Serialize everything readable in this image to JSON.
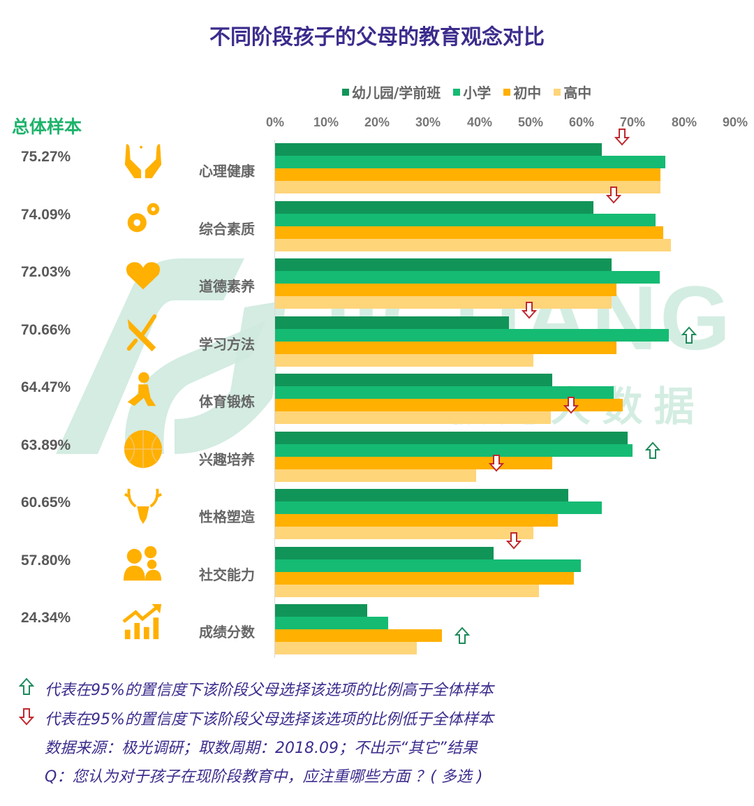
{
  "title": "不同阶段孩子的父母的教育观念对比",
  "legend": [
    {
      "label": "幼儿园/学前班",
      "color": "#119458"
    },
    {
      "label": "小学",
      "color": "#15bb73"
    },
    {
      "label": "初中",
      "color": "#ffb000"
    },
    {
      "label": "高中",
      "color": "#ffd57a"
    }
  ],
  "overall_title": "总体样本",
  "watermark": {
    "en": "JIGUANG",
    "cn": "极 光 大 数 据"
  },
  "footnotes": {
    "up": "代表在95%的置信度下该阶段父母选择该选项的比例高于全体样本",
    "down": "代表在95%的置信度下该阶段父母选择该选项的比例低于全体样本",
    "source": "数据来源：极光调研；取数周期：2018.09；不出示“其它”结果",
    "question": "Q：您认为对于孩子在现阶段教育中，应注重哪些方面 ？( 多选 )"
  },
  "colors": {
    "up_arrow": "#1e8a5a",
    "down_arrow": "#c0282e",
    "title": "#3d2c8d"
  },
  "chart_data": {
    "type": "bar",
    "orientation": "horizontal",
    "title": "不同阶段孩子的父母的教育观念对比",
    "xlabel": "",
    "ylabel": "",
    "xlim": [
      0,
      90
    ],
    "x_ticks": [
      "0%",
      "10%",
      "20%",
      "30%",
      "40%",
      "50%",
      "60%",
      "70%",
      "80%",
      "90%"
    ],
    "grid": false,
    "legend_position": "top",
    "categories": [
      "心理健康",
      "综合素质",
      "道德素养",
      "学习方法",
      "体育锻炼",
      "兴趣培养",
      "性格塑造",
      "社交能力",
      "成绩分数"
    ],
    "overall": [
      "75.27%",
      "74.09%",
      "72.03%",
      "70.66%",
      "64.47%",
      "63.89%",
      "60.65%",
      "57.80%",
      "24.34%"
    ],
    "icons": [
      "hands-icon",
      "gears-icon",
      "heart-icon",
      "tools-icon",
      "runner-icon",
      "basketball-icon",
      "deer-icon",
      "people-icon",
      "growth-chart-icon"
    ],
    "series": [
      {
        "name": "幼儿园/学前班",
        "values": [
          64.0,
          62.3,
          65.8,
          45.8,
          54.3,
          69.0,
          57.4,
          42.7,
          18.0
        ]
      },
      {
        "name": "小学",
        "values": [
          76.4,
          74.4,
          75.3,
          77.0,
          66.2,
          70.0,
          64.0,
          59.9,
          22.1
        ]
      },
      {
        "name": "初中",
        "values": [
          75.4,
          75.9,
          66.8,
          66.8,
          68.1,
          54.2,
          55.3,
          58.5,
          32.6
        ]
      },
      {
        "name": "高中",
        "values": [
          75.4,
          77.4,
          65.8,
          50.6,
          53.9,
          39.3,
          50.6,
          51.6,
          27.8
        ]
      }
    ],
    "significance_markers": [
      {
        "category": "心理健康",
        "series": "幼儿园/学前班",
        "direction": "down"
      },
      {
        "category": "综合素质",
        "series": "幼儿园/学前班",
        "direction": "down"
      },
      {
        "category": "学习方法",
        "series": "幼儿园/学前班",
        "direction": "down"
      },
      {
        "category": "学习方法",
        "series": "小学",
        "direction": "up"
      },
      {
        "category": "体育锻炼",
        "series": "高中",
        "direction": "down"
      },
      {
        "category": "兴趣培养",
        "series": "小学",
        "direction": "up"
      },
      {
        "category": "兴趣培养",
        "series": "高中",
        "direction": "down"
      },
      {
        "category": "社交能力",
        "series": "幼儿园/学前班",
        "direction": "down"
      },
      {
        "category": "成绩分数",
        "series": "初中",
        "direction": "up"
      }
    ]
  }
}
